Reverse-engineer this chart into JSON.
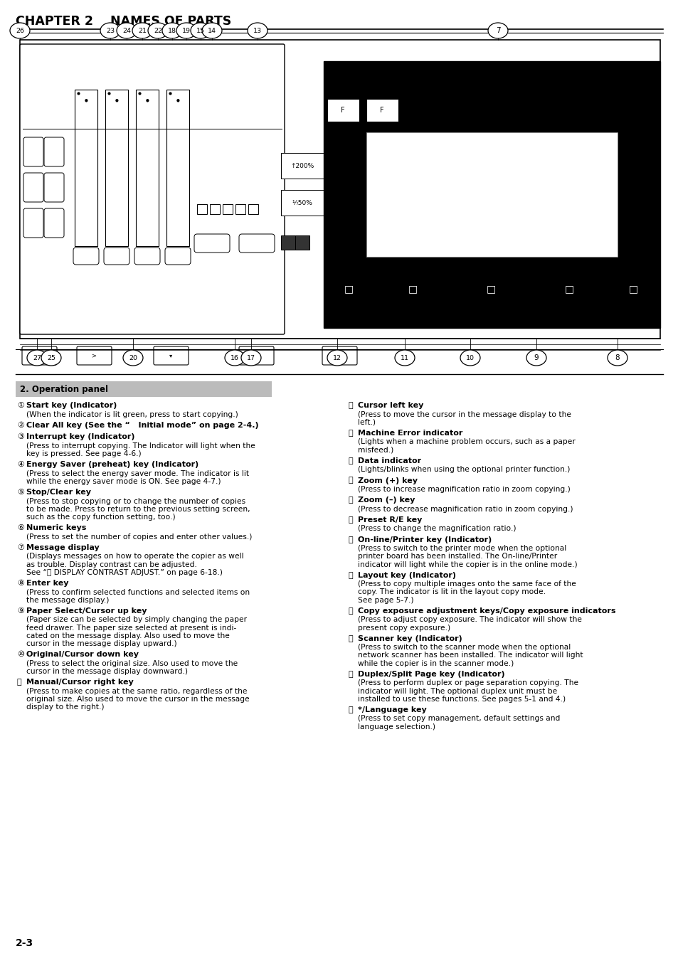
{
  "title": "CHAPTER 2    NAMES OF PARTS",
  "page_num": "2-3",
  "bg_color": "#ffffff",
  "section_header": "2. Operation panel",
  "section_header_bg": "#c0c0c0",
  "left_column": [
    {
      "num": "①",
      "head": "Start key (Indicator)",
      "body": "(When the indicator is lit green, press to start copying.)"
    },
    {
      "num": "②",
      "head": "Clear All key (See the “   Initial mode” on page 2-4.)",
      "body": ""
    },
    {
      "num": "③",
      "head": "Interrupt key (Indicator)",
      "body": "(Press to interrupt copying. The Indicator will light when the\nkey is pressed. See page 4-6.)"
    },
    {
      "num": "④",
      "head": "Energy Saver (preheat) key (Indicator)",
      "body": "(Press to select the energy saver mode. The indicator is lit\nwhile the energy saver mode is ON. See page 4-7.)"
    },
    {
      "num": "⑤",
      "head": "Stop/Clear key",
      "body": "(Press to stop copying or to change the number of copies\nto be made. Press to return to the previous setting screen,\nsuch as the copy function setting, too.)"
    },
    {
      "num": "⑥",
      "head": "Numeric keys",
      "body": "(Press to set the number of copies and enter other values.)"
    },
    {
      "num": "⑦",
      "head": "Message display",
      "body": "(Displays messages on how to operate the copier as well\nas trouble. Display contrast can be adjusted.\nSee “ⓦ DISPLAY CONTRAST ADJUST.” on page 6-18.)"
    },
    {
      "num": "⑧",
      "head": "Enter key",
      "body": "(Press to confirm selected functions and selected items on\nthe message display.)"
    },
    {
      "num": "⑨",
      "head": "Paper Select/Cursor up key",
      "body": "(Paper size can be selected by simply changing the paper\nfeed drawer. The paper size selected at present is indi-\ncated on the message display. Also used to move the\ncursor in the message display upward.)"
    },
    {
      "num": "⑩",
      "head": "Original/Cursor down key",
      "body": "(Press to select the original size. Also used to move the\ncursor in the message display downward.)"
    },
    {
      "num": "⑪",
      "head": "Manual/Cursor right key",
      "body": "(Press to make copies at the same ratio, regardless of the\noriginal size. Also used to move the cursor in the message\ndisplay to the right.)"
    }
  ],
  "right_column": [
    {
      "num": "⑫",
      "head": "Cursor left key",
      "body": "(Press to move the cursor in the message display to the\nleft.)"
    },
    {
      "num": "⑬",
      "head": "Machine Error indicator",
      "body": "(Lights when a machine problem occurs, such as a paper\nmisfeed.)"
    },
    {
      "num": "⑭",
      "head": "Data indicator",
      "body": "(Lights/blinks when using the optional printer function.)"
    },
    {
      "num": "⑮",
      "head": "Zoom (+) key",
      "body": "(Press to increase magnification ratio in zoom copying.)"
    },
    {
      "num": "⑯",
      "head": "Zoom (–) key",
      "body": "(Press to decrease magnification ratio in zoom copying.)"
    },
    {
      "num": "⑰",
      "head": "Preset R/E key",
      "body": "(Press to change the magnification ratio.)"
    },
    {
      "num": "⑱",
      "head": "On-line/Printer key (Indicator)",
      "body": "(Press to switch to the printer mode when the optional\nprinter board has been installed. The On-line/Printer\nindicator will light while the copier is in the online mode.)"
    },
    {
      "num": "⑲",
      "head": "Layout key (Indicator)",
      "body": "(Press to copy multiple images onto the same face of the\ncopy. The indicator is lit in the layout copy mode.\nSee page 5-7.)"
    },
    {
      "num": "⑳",
      "head": "Copy exposure adjustment keys/Copy exposure indicators",
      "body": "(Press to adjust copy exposure. The indicator will show the\npresent copy exposure.)"
    },
    {
      "num": "⒴",
      "head": "Scanner key (Indicator)",
      "body": "(Press to switch to the scanner mode when the optional\nnetwork scanner has been installed. The indicator will light\nwhile the copier is in the scanner mode.)"
    },
    {
      "num": "⒵",
      "head": "Duplex/Split Page key (Indicator)",
      "body": "(Press to perform duplex or page separation copying. The\nindicator will light. The optional duplex unit must be\ninstalled to use these functions. See pages 5-1 and 4.)"
    },
    {
      "num": "Ⓐ",
      "head": "*/Language key",
      "body": "(Press to set copy management, default settings and\nlanguage selection.)"
    }
  ],
  "top_labels": [
    [
      28,
      "26"
    ],
    [
      155,
      "23"
    ],
    [
      178,
      "24"
    ],
    [
      200,
      "21"
    ],
    [
      222,
      "22"
    ],
    [
      242,
      "18"
    ],
    [
      262,
      "19"
    ],
    [
      282,
      "15"
    ],
    [
      298,
      "14"
    ],
    [
      362,
      "13"
    ],
    [
      700,
      "7"
    ]
  ],
  "bottom_labels": [
    [
      52,
      "27"
    ],
    [
      72,
      "25"
    ],
    [
      187,
      "20"
    ],
    [
      330,
      "16"
    ],
    [
      353,
      "17"
    ],
    [
      474,
      "12"
    ],
    [
      569,
      "11"
    ],
    [
      661,
      "10"
    ],
    [
      754,
      "9"
    ],
    [
      868,
      "8"
    ]
  ]
}
